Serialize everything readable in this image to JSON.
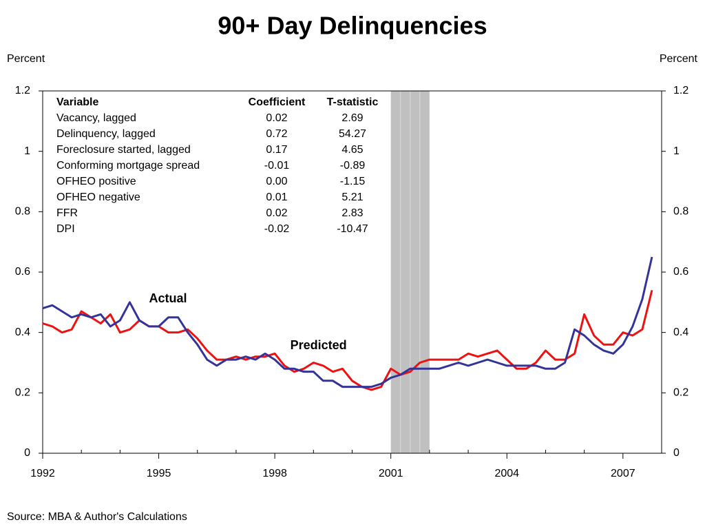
{
  "chart_data": {
    "type": "line",
    "title": "90+ Day Delinquencies",
    "ylabel": "Percent",
    "y2label": "Percent",
    "source": "Source: MBA & Author's Calculations",
    "x": [
      1992,
      1992.25,
      1992.5,
      1992.75,
      1993,
      1993.25,
      1993.5,
      1993.75,
      1994,
      1994.25,
      1994.5,
      1994.75,
      1995,
      1995.25,
      1995.5,
      1995.75,
      1996,
      1996.25,
      1996.5,
      1996.75,
      1997,
      1997.25,
      1997.5,
      1997.75,
      1998,
      1998.25,
      1998.5,
      1998.75,
      1999,
      1999.25,
      1999.5,
      1999.75,
      2000,
      2000.25,
      2000.5,
      2000.75,
      2001,
      2001.25,
      2001.5,
      2001.75,
      2002,
      2002.25,
      2002.5,
      2002.75,
      2003,
      2003.25,
      2003.5,
      2003.75,
      2004,
      2004.25,
      2004.5,
      2004.75,
      2005,
      2005.25,
      2005.5,
      2005.75,
      2006,
      2006.25,
      2006.5,
      2006.75,
      2007,
      2007.25,
      2007.5,
      2007.75
    ],
    "series": [
      {
        "name": "Actual",
        "color": "#333399",
        "values": [
          0.48,
          0.49,
          0.47,
          0.45,
          0.46,
          0.45,
          0.46,
          0.42,
          0.44,
          0.5,
          0.44,
          0.42,
          0.42,
          0.45,
          0.45,
          0.4,
          0.36,
          0.31,
          0.29,
          0.31,
          0.31,
          0.32,
          0.31,
          0.33,
          0.31,
          0.28,
          0.28,
          0.27,
          0.27,
          0.24,
          0.24,
          0.22,
          0.22,
          0.22,
          0.22,
          0.23,
          0.25,
          0.26,
          0.28,
          0.28,
          0.28,
          0.28,
          0.29,
          0.3,
          0.29,
          0.3,
          0.31,
          0.3,
          0.29,
          0.29,
          0.29,
          0.29,
          0.28,
          0.28,
          0.3,
          0.41,
          0.39,
          0.36,
          0.34,
          0.33,
          0.36,
          0.42,
          0.51,
          0.65
        ]
      },
      {
        "name": "Predicted",
        "color": "#ee1111",
        "values": [
          0.43,
          0.42,
          0.4,
          0.41,
          0.47,
          0.45,
          0.43,
          0.46,
          0.4,
          0.41,
          0.44,
          0.42,
          0.42,
          0.4,
          0.4,
          0.41,
          0.38,
          0.34,
          0.31,
          0.31,
          0.32,
          0.31,
          0.32,
          0.32,
          0.33,
          0.29,
          0.27,
          0.28,
          0.3,
          0.29,
          0.27,
          0.28,
          0.24,
          0.22,
          0.21,
          0.22,
          0.28,
          0.26,
          0.27,
          0.3,
          0.31,
          0.31,
          0.31,
          0.31,
          0.33,
          0.32,
          0.33,
          0.34,
          0.31,
          0.28,
          0.28,
          0.3,
          0.34,
          0.31,
          0.31,
          0.33,
          0.46,
          0.39,
          0.36,
          0.36,
          0.4,
          0.39,
          0.41,
          0.54
        ]
      }
    ],
    "annotations": [
      {
        "text": "Actual",
        "x": 1994.75,
        "y": 0.51
      },
      {
        "text": "Predicted",
        "x": 1998.4,
        "y": 0.355
      }
    ],
    "shaded_period": [
      2001,
      2002
    ],
    "xlim": [
      1992,
      2008
    ],
    "xticks": [
      1992,
      1995,
      1998,
      2001,
      2004,
      2007
    ],
    "x_minor_ticks": [
      1993,
      1994,
      1996,
      1997,
      1999,
      2000,
      2002,
      2003,
      2005,
      2006
    ],
    "ylim": [
      0,
      1.2
    ],
    "yticks": [
      0,
      0.2,
      0.4,
      0.6,
      0.8,
      1,
      1.2
    ],
    "y2lim": [
      0,
      1.2
    ],
    "y2ticks": [
      0,
      0.2,
      0.4,
      0.6,
      0.8,
      1,
      1.2
    ],
    "table": {
      "header": [
        "Variable",
        "Coefficient",
        "T-statistic"
      ],
      "rows": [
        [
          "Vacancy, lagged",
          "0.02",
          "2.69"
        ],
        [
          "Delinquency, lagged",
          "0.72",
          "54.27"
        ],
        [
          "Foreclosure started, lagged",
          "0.17",
          "4.65"
        ],
        [
          "Conforming mortgage spread",
          "-0.01",
          "-0.89"
        ],
        [
          "OFHEO positive",
          "0.00",
          "-1.15"
        ],
        [
          "OFHEO negative",
          "0.01",
          "5.21"
        ],
        [
          "FFR",
          "0.02",
          "2.83"
        ],
        [
          "DPI",
          "-0.02",
          "-10.47"
        ]
      ]
    }
  }
}
